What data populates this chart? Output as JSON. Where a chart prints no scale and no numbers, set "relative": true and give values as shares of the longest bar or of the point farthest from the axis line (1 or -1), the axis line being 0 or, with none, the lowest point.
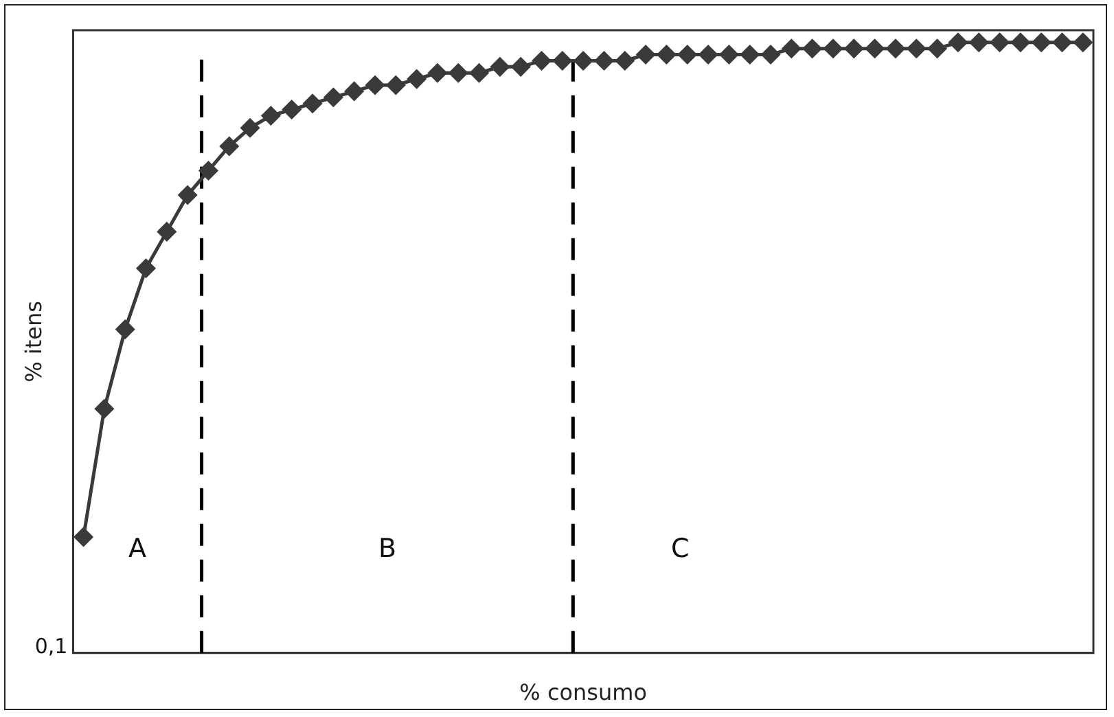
{
  "chart_data": {
    "type": "line",
    "xlabel": "% consumo",
    "ylabel": "% itens",
    "relative": true,
    "legend": false,
    "marker": "diamond",
    "line_style": "solid",
    "categories": [
      null,
      null,
      null,
      null,
      null,
      null,
      null,
      null,
      null,
      null,
      null,
      null,
      null,
      null,
      null,
      null,
      null,
      null,
      null,
      null,
      null,
      null,
      null,
      null,
      null,
      null,
      null,
      null,
      null,
      null,
      null,
      null,
      null,
      null,
      null,
      null,
      null,
      null,
      null,
      null,
      null,
      null,
      null,
      null,
      null,
      null,
      null,
      null,
      null
    ],
    "series": [
      {
        "color": "#3a3a3a",
        "values": [
          0.19,
          0.4,
          0.53,
          0.63,
          0.69,
          0.75,
          0.79,
          0.83,
          0.86,
          0.88,
          0.89,
          0.9,
          0.91,
          0.92,
          0.93,
          0.93,
          0.94,
          0.95,
          0.95,
          0.95,
          0.96,
          0.96,
          0.97,
          0.97,
          0.97,
          0.97,
          0.97,
          0.98,
          0.98,
          0.98,
          0.98,
          0.98,
          0.98,
          0.98,
          0.99,
          0.99,
          0.99,
          0.99,
          0.99,
          0.99,
          0.99,
          0.99,
          1.0,
          1.0,
          1.0,
          1.0,
          1.0,
          1.0,
          1.0
        ]
      }
    ],
    "annotations": [
      "0,1",
      "A",
      "B",
      "C"
    ]
  }
}
